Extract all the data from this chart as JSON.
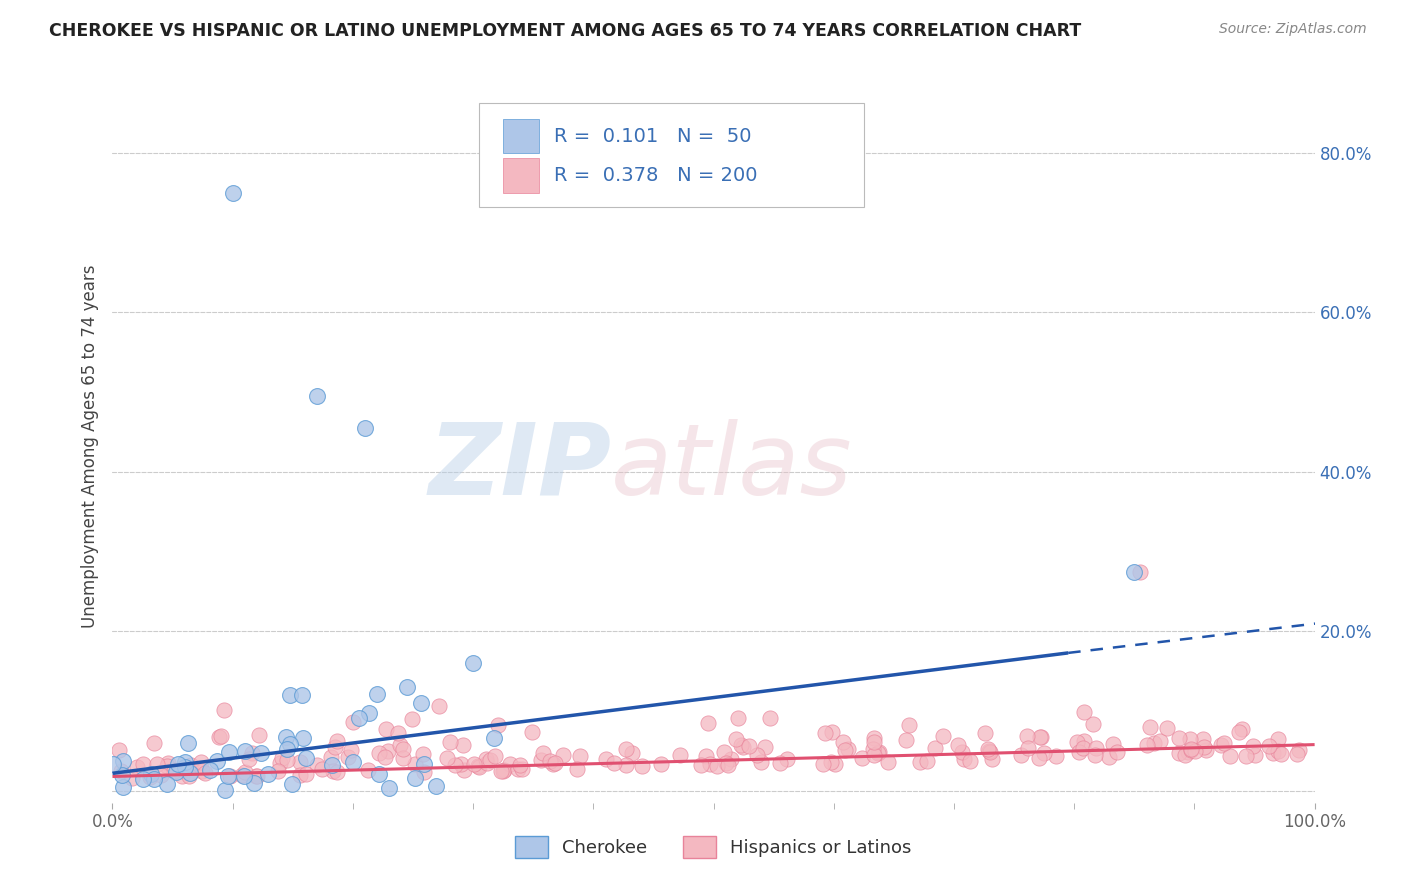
{
  "title": "CHEROKEE VS HISPANIC OR LATINO UNEMPLOYMENT AMONG AGES 65 TO 74 YEARS CORRELATION CHART",
  "source": "Source: ZipAtlas.com",
  "ylabel": "Unemployment Among Ages 65 to 74 years",
  "xlim": [
    0,
    1
  ],
  "ylim": [
    -0.015,
    0.88
  ],
  "ytick_vals": [
    0.0,
    0.2,
    0.4,
    0.6,
    0.8
  ],
  "ytick_labels": [
    "",
    "20.0%",
    "40.0%",
    "60.0%",
    "80.0%"
  ],
  "xtick_vals": [
    0.0,
    1.0
  ],
  "xtick_labels": [
    "0.0%",
    "100.0%"
  ],
  "cherokee_color": "#aec6e8",
  "cherokee_edge": "#5b9bd5",
  "hispanic_color": "#f4b8c1",
  "hispanic_edge": "#e8839a",
  "trend_cherokee_color": "#2255aa",
  "trend_hispanic_color": "#e05070",
  "R_cherokee": 0.101,
  "N_cherokee": 50,
  "R_hispanic": 0.378,
  "N_hispanic": 200,
  "legend_text_color": "#3a6fb5",
  "background_color": "#ffffff",
  "grid_color": "#cccccc",
  "title_color": "#222222",
  "source_color": "#888888",
  "ylabel_color": "#444444",
  "ytick_color": "#3a6fb5",
  "xtick_color": "#666666"
}
